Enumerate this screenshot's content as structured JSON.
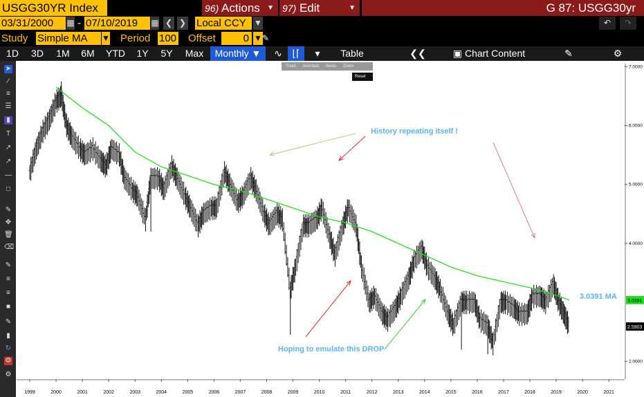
{
  "header": {
    "ticker": "USGG30YR Index",
    "actions_num": "96)",
    "actions_label": "Actions",
    "edit_num": "97)",
    "edit_label": "Edit",
    "window_title": "G 87: USGG30yr"
  },
  "controls": {
    "start_date": "03/31/2000",
    "dash": "-",
    "end_date": "07/10/2019",
    "currency": "Local CCY",
    "study_label": "Study",
    "study_value": "Simple MA",
    "period_label": "Period",
    "period_value": "100",
    "offset_label": "Offset",
    "offset_value": "0"
  },
  "toolbar": {
    "ranges": [
      "1D",
      "3D",
      "1M",
      "6M",
      "YTD",
      "1Y",
      "5Y",
      "Max"
    ],
    "frequency": "Monthly",
    "table_label": "Table",
    "chart_content_label": "Chart Content"
  },
  "mini_tools": [
    "Track",
    "Annotate",
    "News",
    "Zoom"
  ],
  "reset_label": "Reset",
  "colors": {
    "accent": "#ffc000",
    "menu_red": "#8b1a1a",
    "ma_green": "#22dd22",
    "annotation_blue": "#5eb4ea"
  },
  "chart_data": {
    "type": "line",
    "title": "",
    "xlabel": "",
    "ylabel": "",
    "x_ticks": [
      "1999",
      "2000",
      "2001",
      "2002",
      "2003",
      "2004",
      "2005",
      "2006",
      "2007",
      "2008",
      "2009",
      "2010",
      "2011",
      "2012",
      "2013",
      "2014",
      "2015",
      "2016",
      "2017",
      "2018",
      "2019",
      "2020",
      "2021"
    ],
    "y_ticks": [
      "7.0000",
      "6.0000",
      "5.0000",
      "4.0000",
      "2.0000"
    ],
    "ylim": [
      1.7,
      7.05
    ],
    "xlim": [
      1998.5,
      2021.6
    ],
    "series": [
      {
        "kind": "hl_bars",
        "points": [
          [
            1999.0,
            5.2
          ],
          [
            1999.25,
            5.6
          ],
          [
            1999.5,
            5.9
          ],
          [
            1999.75,
            6.1
          ],
          [
            2000.0,
            6.4
          ],
          [
            2000.2,
            6.5
          ],
          [
            2000.4,
            6.0
          ],
          [
            2000.6,
            5.8
          ],
          [
            2000.9,
            5.6
          ],
          [
            2001.1,
            5.5
          ],
          [
            2001.4,
            5.6
          ],
          [
            2001.7,
            5.4
          ],
          [
            2001.9,
            5.3
          ],
          [
            2002.1,
            5.6
          ],
          [
            2002.4,
            5.5
          ],
          [
            2002.6,
            5.1
          ],
          [
            2002.9,
            4.9
          ],
          [
            2003.1,
            4.8
          ],
          [
            2003.4,
            4.4
          ],
          [
            2003.6,
            5.1
          ],
          [
            2003.9,
            5.1
          ],
          [
            2004.1,
            4.9
          ],
          [
            2004.4,
            5.3
          ],
          [
            2004.6,
            5.1
          ],
          [
            2004.9,
            4.8
          ],
          [
            2005.1,
            4.6
          ],
          [
            2005.4,
            4.3
          ],
          [
            2005.6,
            4.5
          ],
          [
            2005.9,
            4.6
          ],
          [
            2006.1,
            4.6
          ],
          [
            2006.4,
            5.2
          ],
          [
            2006.6,
            5.0
          ],
          [
            2006.9,
            4.7
          ],
          [
            2007.1,
            4.8
          ],
          [
            2007.4,
            5.1
          ],
          [
            2007.6,
            4.9
          ],
          [
            2007.9,
            4.5
          ],
          [
            2008.1,
            4.3
          ],
          [
            2008.4,
            4.5
          ],
          [
            2008.6,
            4.4
          ],
          [
            2008.9,
            3.2
          ],
          [
            2009.1,
            3.6
          ],
          [
            2009.4,
            4.3
          ],
          [
            2009.6,
            4.3
          ],
          [
            2009.9,
            4.4
          ],
          [
            2010.1,
            4.6
          ],
          [
            2010.4,
            4.1
          ],
          [
            2010.6,
            3.8
          ],
          [
            2010.9,
            4.3
          ],
          [
            2011.1,
            4.6
          ],
          [
            2011.4,
            4.3
          ],
          [
            2011.6,
            3.6
          ],
          [
            2011.9,
            3.0
          ],
          [
            2012.1,
            3.1
          ],
          [
            2012.4,
            2.8
          ],
          [
            2012.6,
            2.7
          ],
          [
            2012.9,
            2.9
          ],
          [
            2013.1,
            3.1
          ],
          [
            2013.4,
            3.4
          ],
          [
            2013.6,
            3.7
          ],
          [
            2013.9,
            3.9
          ],
          [
            2014.1,
            3.6
          ],
          [
            2014.4,
            3.4
          ],
          [
            2014.6,
            3.2
          ],
          [
            2014.9,
            2.8
          ],
          [
            2015.1,
            2.6
          ],
          [
            2015.4,
            3.0
          ],
          [
            2015.6,
            3.0
          ],
          [
            2015.9,
            3.0
          ],
          [
            2016.1,
            2.7
          ],
          [
            2016.4,
            2.6
          ],
          [
            2016.6,
            2.3
          ],
          [
            2016.9,
            3.0
          ],
          [
            2017.1,
            3.0
          ],
          [
            2017.4,
            2.9
          ],
          [
            2017.6,
            2.8
          ],
          [
            2017.9,
            2.8
          ],
          [
            2018.1,
            3.1
          ],
          [
            2018.4,
            3.1
          ],
          [
            2018.6,
            3.0
          ],
          [
            2018.9,
            3.3
          ],
          [
            2019.1,
            3.0
          ],
          [
            2019.3,
            2.8
          ],
          [
            2019.5,
            2.59
          ]
        ]
      },
      {
        "name": "3.0391 MA",
        "kind": "line",
        "color": "#22dd22",
        "points": [
          [
            2000.0,
            6.65
          ],
          [
            2001.0,
            6.3
          ],
          [
            2002.0,
            6.0
          ],
          [
            2003.0,
            5.55
          ],
          [
            2004.0,
            5.3
          ],
          [
            2005.0,
            5.15
          ],
          [
            2006.0,
            5.0
          ],
          [
            2007.0,
            4.9
          ],
          [
            2008.0,
            4.75
          ],
          [
            2009.0,
            4.6
          ],
          [
            2010.0,
            4.45
          ],
          [
            2011.0,
            4.35
          ],
          [
            2012.0,
            4.2
          ],
          [
            2013.0,
            4.0
          ],
          [
            2014.0,
            3.8
          ],
          [
            2015.0,
            3.6
          ],
          [
            2016.0,
            3.45
          ],
          [
            2017.0,
            3.35
          ],
          [
            2018.0,
            3.25
          ],
          [
            2019.0,
            3.12
          ],
          [
            2019.5,
            3.04
          ]
        ]
      }
    ],
    "last_price_label": "2.5903",
    "ma_value_label": "3.0391",
    "ma_annotation": "3.0391 MA",
    "annotations": [
      {
        "text": "History repeating itself !"
      },
      {
        "text": "Hoping to emulate this DROP"
      }
    ]
  }
}
